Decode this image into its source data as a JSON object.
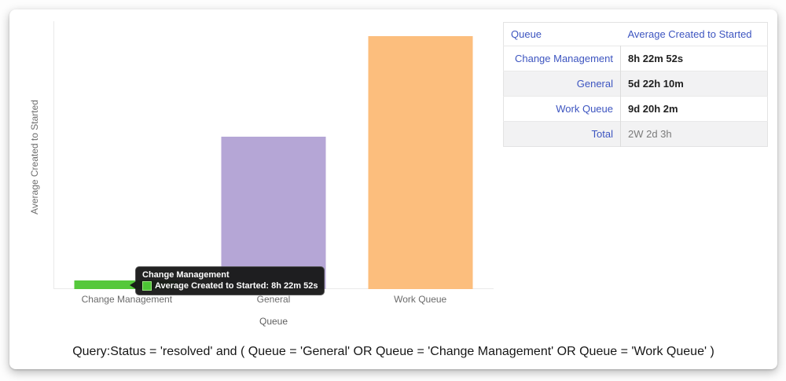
{
  "chart_data": {
    "type": "bar",
    "categories": [
      "Change Management",
      "General",
      "Work Queue"
    ],
    "series": [
      {
        "name": "Average Created to Started",
        "values_hours": [
          8.38,
          142.17,
          236.03
        ],
        "value_labels": [
          "8h 22m 52s",
          "5d 22h 10m",
          "9d 20h 2m"
        ]
      }
    ],
    "bar_colors": [
      "#55c83b",
      "#b5a6d6",
      "#fcbe7d"
    ],
    "title": "",
    "xlabel": "Queue",
    "ylabel": "Average Created to Started",
    "ylim_hours": [
      0,
      250
    ],
    "grid": false,
    "y_tick_labels": [],
    "legend_position": "none"
  },
  "tooltip": {
    "title": "Change Management",
    "label": "Average Created to Started: 8h 22m 52s",
    "swatch_color": "#4cc434",
    "swatch_border_color": "#9be77f"
  },
  "table": {
    "columns": [
      "Queue",
      "Average Created to Started"
    ],
    "rows": [
      {
        "queue": "Change Management",
        "value": "8h 22m 52s",
        "is_total": false
      },
      {
        "queue": "General",
        "value": "5d 22h 10m",
        "is_total": false
      },
      {
        "queue": "Work Queue",
        "value": "9d 20h 2m",
        "is_total": false
      },
      {
        "queue": "Total",
        "value": "2W 2d 3h",
        "is_total": true
      }
    ]
  },
  "query": {
    "text": "Query:Status = 'resolved' and ( Queue = 'General' OR Queue = 'Change Management' OR Queue = 'Work Queue' )"
  },
  "colors": {
    "link_blue": "#3d55c0",
    "axis_gray": "#eaeaea",
    "tooltip_bg": "#161616"
  }
}
